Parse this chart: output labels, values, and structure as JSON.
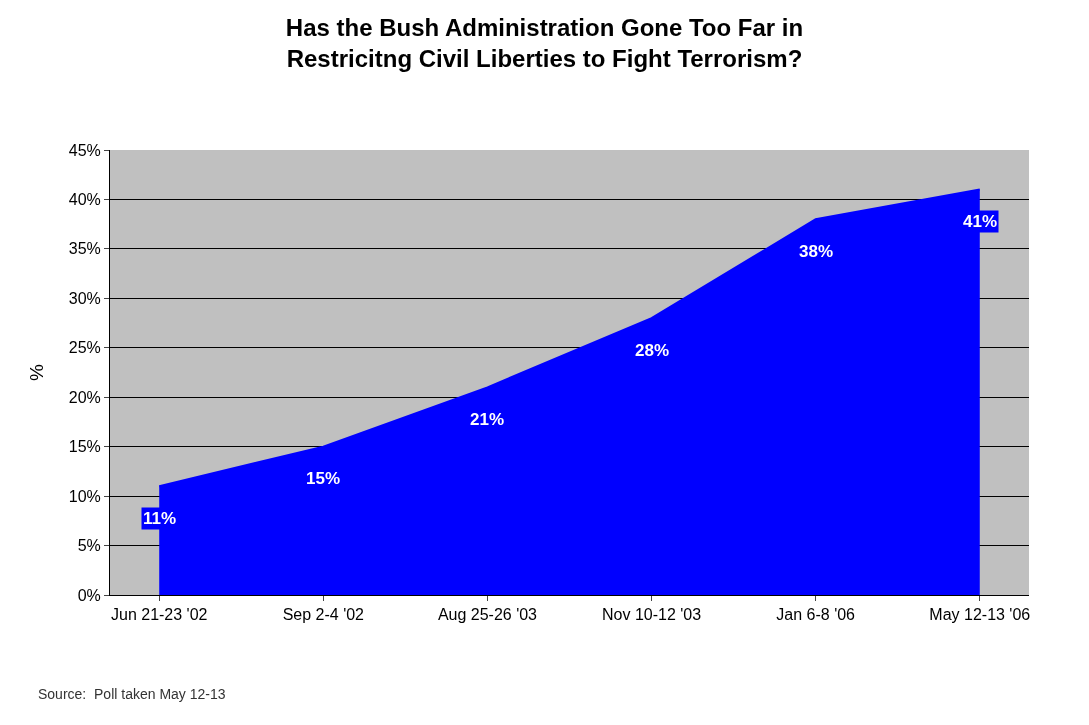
{
  "chart_data": {
    "type": "area",
    "title": "Has the Bush Administration Gone Too Far in\nRestricitng Civil Liberties to Fight Terrorism?",
    "ylabel": "%",
    "categories": [
      "Jun 21-23 '02",
      "Sep 2-4 '02",
      "Aug 25-26 '03",
      "Nov 10-12 '03",
      "Jan 6-8 '06",
      "May 12-13 '06"
    ],
    "series": [
      {
        "color": "#0000ff",
        "values": [
          11,
          15,
          21,
          28,
          38,
          41
        ]
      }
    ],
    "value_labels": [
      "11%",
      "15%",
      "21%",
      "28%",
      "38%",
      "41%"
    ],
    "ylim": [
      0,
      45
    ],
    "yticks": [
      {
        "value": 0,
        "label": "0%"
      },
      {
        "value": 5,
        "label": "5%"
      },
      {
        "value": 10,
        "label": "10%"
      },
      {
        "value": 15,
        "label": "15%"
      },
      {
        "value": 20,
        "label": "20%"
      },
      {
        "value": 25,
        "label": "25%"
      },
      {
        "value": 30,
        "label": "30%"
      },
      {
        "value": 35,
        "label": "35%"
      },
      {
        "value": 40,
        "label": "40%"
      },
      {
        "value": 45,
        "label": "45%"
      }
    ],
    "grid": "y",
    "annotations": [
      "Source:  Poll taken May 12-13"
    ]
  }
}
